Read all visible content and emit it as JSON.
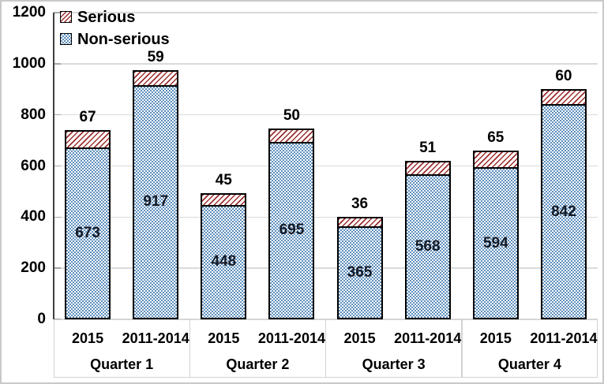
{
  "chart_data": {
    "type": "bar",
    "stacked": true,
    "title": "",
    "xlabel": "",
    "ylabel": "",
    "ylim": [
      0,
      1200
    ],
    "yticks": [
      0,
      200,
      400,
      600,
      800,
      1000,
      1200
    ],
    "grid": true,
    "legend_position": "top-left",
    "categories": [
      "2015",
      "2011-2014",
      "2015",
      "2011-2014",
      "2015",
      "2011-2014",
      "2015",
      "2011-2014"
    ],
    "groups": [
      {
        "label": "Quarter 1"
      },
      {
        "label": "Quarter 2"
      },
      {
        "label": "Quarter 3"
      },
      {
        "label": "Quarter 4"
      }
    ],
    "series": [
      {
        "name": "Non-serious",
        "pattern": "dotted-check",
        "color": "#5e8fbd",
        "label_placement": "inside",
        "values": [
          673,
          917,
          448,
          695,
          365,
          568,
          594,
          842
        ]
      },
      {
        "name": "Serious",
        "pattern": "diagonal-hatch",
        "color": "#9c2f2f",
        "label_placement": "above",
        "values": [
          67,
          59,
          45,
          50,
          36,
          51,
          65,
          60
        ]
      }
    ]
  },
  "legend": {
    "items": [
      {
        "label": "Serious",
        "swatch": "serious"
      },
      {
        "label": "Non-serious",
        "swatch": "nonserious"
      }
    ]
  },
  "colors": {
    "nonserious_fill": "#5e8fbd",
    "serious_hatch": "#9c2f2f",
    "bar_border": "#000000",
    "gridline": "#dadada",
    "axis_line": "#3f3f3f",
    "tick": "#a6a6a6",
    "label_area_border": "#d2d2d2",
    "frame_border": "#c9c9c9",
    "text": "#000000"
  }
}
